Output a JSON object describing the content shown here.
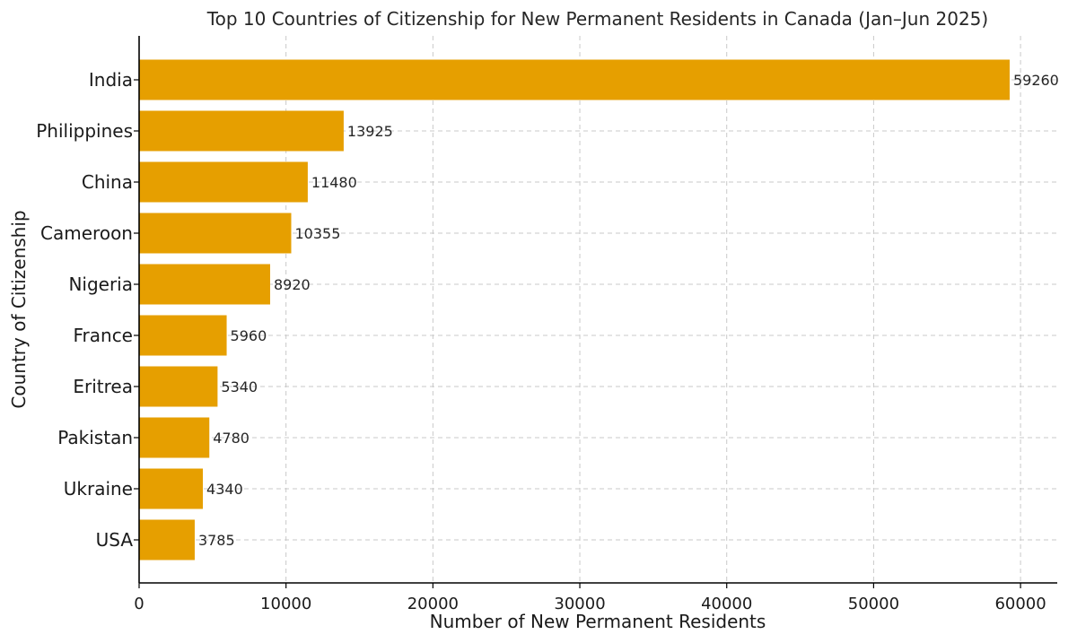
{
  "chart_data": {
    "type": "bar",
    "orientation": "horizontal",
    "title": "Top 10 Countries of Citizenship for New Permanent Residents in Canada (Jan–Jun 2025)",
    "xlabel": "Number of New Permanent Residents",
    "ylabel": "Country of Citizenship",
    "categories": [
      "India",
      "Philippines",
      "China",
      "Cameroon",
      "Nigeria",
      "France",
      "Eritrea",
      "Pakistan",
      "Ukraine",
      "USA"
    ],
    "values": [
      59260,
      13925,
      11480,
      10355,
      8920,
      5960,
      5340,
      4780,
      4340,
      3785
    ],
    "value_labels": [
      "59260",
      "13925",
      "11480",
      "10355",
      "8920",
      "5960",
      "5340",
      "4780",
      "4340",
      "3785"
    ],
    "xticks": [
      0,
      10000,
      20000,
      30000,
      40000,
      50000,
      60000
    ],
    "xtick_labels": [
      "0",
      "10000",
      "20000",
      "30000",
      "40000",
      "50000",
      "60000"
    ],
    "xlim": [
      0,
      62500
    ],
    "grid": true,
    "bar_color": "#E69F00"
  }
}
